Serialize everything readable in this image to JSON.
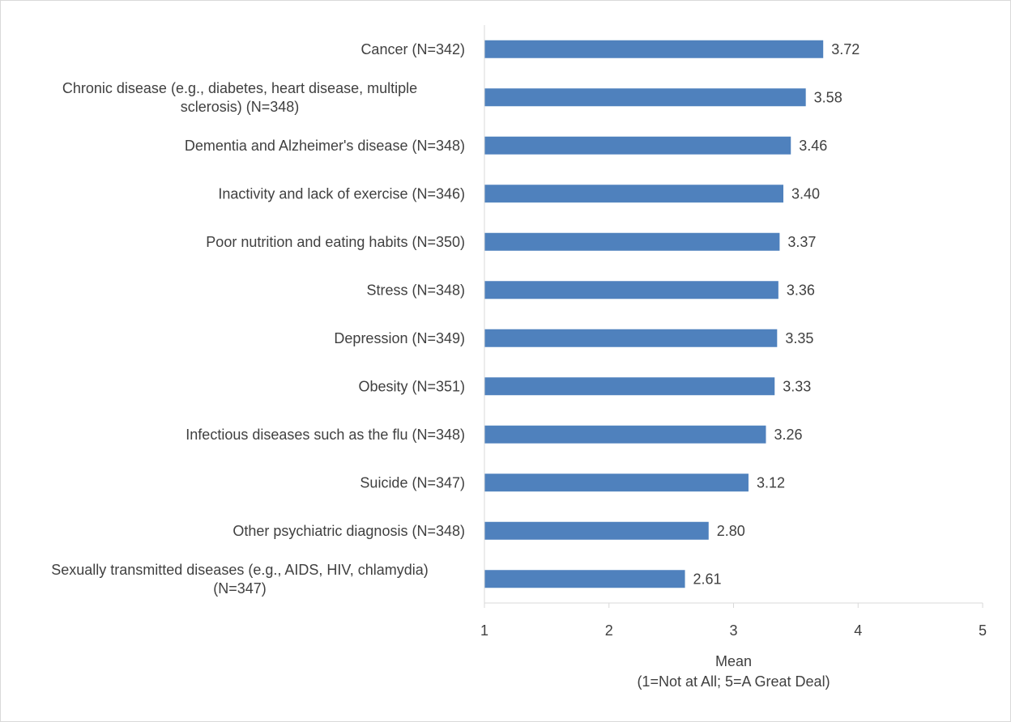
{
  "chart_data": {
    "type": "bar",
    "orientation": "horizontal",
    "categories": [
      "Cancer (N=342)",
      "Chronic disease (e.g., diabetes, heart disease, multiple sclerosis) (N=348)",
      "Dementia and Alzheimer's disease (N=348)",
      "Inactivity and lack of exercise (N=346)",
      "Poor nutrition and eating habits (N=350)",
      "Stress (N=348)",
      "Depression (N=349)",
      "Obesity (N=351)",
      "Infectious diseases such as the flu (N=348)",
      "Suicide (N=347)",
      "Other psychiatric diagnosis (N=348)",
      "Sexually transmitted diseases (e.g., AIDS, HIV, chlamydia) (N=347)"
    ],
    "category_lines": [
      [
        "Cancer (N=342)"
      ],
      [
        "Chronic disease (e.g., diabetes, heart disease, multiple",
        "sclerosis) (N=348)"
      ],
      [
        "Dementia and Alzheimer's disease (N=348)"
      ],
      [
        "Inactivity and lack of exercise (N=346)"
      ],
      [
        "Poor nutrition and eating habits (N=350)"
      ],
      [
        "Stress (N=348)"
      ],
      [
        "Depression (N=349)"
      ],
      [
        "Obesity (N=351)"
      ],
      [
        "Infectious diseases such as the flu (N=348)"
      ],
      [
        "Suicide (N=347)"
      ],
      [
        "Other psychiatric diagnosis (N=348)"
      ],
      [
        "Sexually transmitted diseases (e.g., AIDS, HIV, chlamydia)",
        "(N=347)"
      ]
    ],
    "values": [
      3.72,
      3.58,
      3.46,
      3.4,
      3.37,
      3.36,
      3.35,
      3.33,
      3.26,
      3.12,
      2.8,
      2.61
    ],
    "value_labels": [
      "3.72",
      "3.58",
      "3.46",
      "3.40",
      "3.37",
      "3.36",
      "3.35",
      "3.33",
      "3.26",
      "3.12",
      "2.80",
      "2.61"
    ],
    "xlabel_lines": [
      "Mean",
      "(1=Not at All; 5=A Great Deal)"
    ],
    "xlim": [
      1,
      5
    ],
    "xticks": [
      1,
      2,
      3,
      4,
      5
    ],
    "grid": false,
    "bar_color": "#4f81bd",
    "axis_color": "#d9d9d9"
  }
}
